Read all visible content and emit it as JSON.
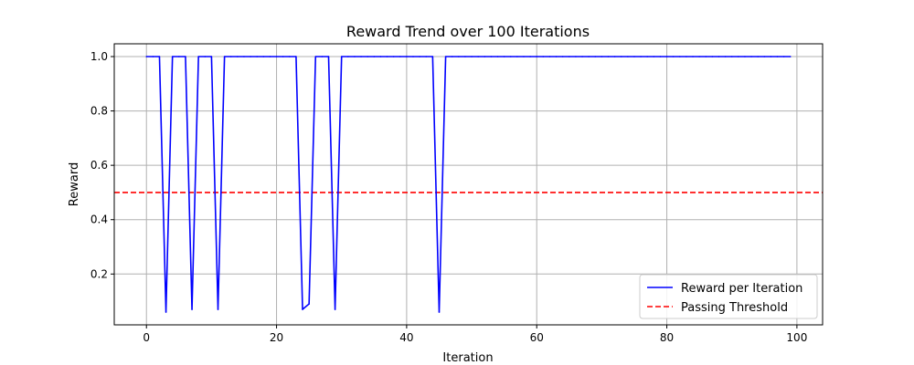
{
  "chart_data": {
    "type": "line",
    "title": "Reward Trend over 100 Iterations",
    "xlabel": "Iteration",
    "ylabel": "Reward",
    "xlim": [
      -4.95,
      103.95
    ],
    "ylim": [
      0.013,
      1.047
    ],
    "xticks": [
      0,
      20,
      40,
      60,
      80,
      100
    ],
    "yticks": [
      0.2,
      0.4,
      0.6,
      0.8,
      1.0
    ],
    "xtick_labels": [
      "0",
      "20",
      "40",
      "60",
      "80",
      "100"
    ],
    "ytick_labels": [
      "0.2",
      "0.4",
      "0.6",
      "0.8",
      "1.0"
    ],
    "grid": true,
    "legend_position": "lower right",
    "series": [
      {
        "name": "Reward per Iteration",
        "color": "#0000ff",
        "style": "solid",
        "x": [
          0,
          1,
          2,
          3,
          4,
          5,
          6,
          7,
          8,
          9,
          10,
          11,
          12,
          13,
          14,
          15,
          16,
          17,
          18,
          19,
          20,
          21,
          22,
          23,
          24,
          25,
          26,
          27,
          28,
          29,
          30,
          31,
          32,
          33,
          34,
          35,
          36,
          37,
          38,
          39,
          40,
          41,
          42,
          43,
          44,
          45,
          46,
          47,
          48,
          49,
          50,
          51,
          52,
          53,
          54,
          55,
          56,
          57,
          58,
          59,
          60,
          61,
          62,
          63,
          64,
          65,
          66,
          67,
          68,
          69,
          70,
          71,
          72,
          73,
          74,
          75,
          76,
          77,
          78,
          79,
          80,
          81,
          82,
          83,
          84,
          85,
          86,
          87,
          88,
          89,
          90,
          91,
          92,
          93,
          94,
          95,
          96,
          97,
          98,
          99
        ],
        "values": [
          1.0,
          1.0,
          1.0,
          0.06,
          1.0,
          1.0,
          1.0,
          0.07,
          1.0,
          1.0,
          1.0,
          0.07,
          1.0,
          1.0,
          1.0,
          1.0,
          1.0,
          1.0,
          1.0,
          1.0,
          1.0,
          1.0,
          1.0,
          1.0,
          0.07,
          0.09,
          1.0,
          1.0,
          1.0,
          0.07,
          1.0,
          1.0,
          1.0,
          1.0,
          1.0,
          1.0,
          1.0,
          1.0,
          1.0,
          1.0,
          1.0,
          1.0,
          1.0,
          1.0,
          1.0,
          0.06,
          1.0,
          1.0,
          1.0,
          1.0,
          1.0,
          1.0,
          1.0,
          1.0,
          1.0,
          1.0,
          1.0,
          1.0,
          1.0,
          1.0,
          1.0,
          1.0,
          1.0,
          1.0,
          1.0,
          1.0,
          1.0,
          1.0,
          1.0,
          1.0,
          1.0,
          1.0,
          1.0,
          1.0,
          1.0,
          1.0,
          1.0,
          1.0,
          1.0,
          1.0,
          1.0,
          1.0,
          1.0,
          1.0,
          1.0,
          1.0,
          1.0,
          1.0,
          1.0,
          1.0,
          1.0,
          1.0,
          1.0,
          1.0,
          1.0,
          1.0,
          1.0,
          1.0,
          1.0,
          1.0
        ]
      },
      {
        "name": "Passing Threshold",
        "color": "#ff0000",
        "style": "dashed",
        "hline": 0.5
      }
    ]
  }
}
